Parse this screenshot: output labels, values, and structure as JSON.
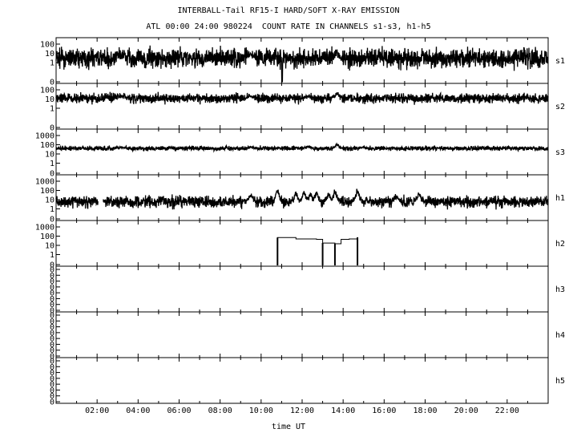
{
  "title": "INTERBALL-Tail RF15-I HARD/SOFT X-RAY EMISSION",
  "subtitle": "ATL 00:00 24:00 980224  COUNT RATE IN CHANNELS s1-s3, h1-h5",
  "chart_data": {
    "type": "line",
    "title": "INTERBALL-Tail RF15-I HARD/SOFT X-RAY EMISSION",
    "subtitle": "ATL 00:00 24:00 980224  COUNT RATE IN CHANNELS s1-s3, h1-h5",
    "xlabel": "time UT",
    "xlim": [
      0,
      24
    ],
    "x_ticks": [
      "02:00",
      "04:00",
      "06:00",
      "08:00",
      "10:00",
      "12:00",
      "14:00",
      "16:00",
      "18:00",
      "20:00",
      "22:00"
    ],
    "x_tick_hours": [
      2,
      4,
      6,
      8,
      10,
      12,
      14,
      16,
      18,
      20,
      22
    ],
    "grid": false,
    "panels": [
      {
        "name": "s1",
        "scale": "log",
        "y_ticks": [
          "100",
          "10",
          "1",
          "0"
        ],
        "baseline": 3,
        "noise": 0.5,
        "events": [
          [
            13.7,
            12
          ],
          [
            9.5,
            5
          ],
          [
            3.2,
            5
          ]
        ],
        "dropouts": [
          [
            1.9,
            1.9
          ],
          [
            11.0,
            11.05
          ]
        ],
        "gaps": []
      },
      {
        "name": "s2",
        "scale": "log",
        "y_ticks": [
          "100",
          "10",
          "1",
          "0"
        ],
        "baseline": 12,
        "noise": 0.25,
        "events": [
          [
            13.7,
            35
          ],
          [
            9.5,
            20
          ],
          [
            3.2,
            18
          ],
          [
            12.3,
            18
          ]
        ],
        "dropouts": [],
        "gaps": []
      },
      {
        "name": "s3",
        "scale": "log",
        "y_ticks": [
          "1000",
          "100",
          "10",
          "1",
          "0"
        ],
        "baseline": 40,
        "noise": 0.12,
        "events": [
          [
            13.7,
            100
          ],
          [
            9.5,
            55
          ],
          [
            3.2,
            55
          ],
          [
            12.3,
            60
          ],
          [
            15.0,
            55
          ]
        ],
        "dropouts": [],
        "gaps": []
      },
      {
        "name": "h1",
        "scale": "log",
        "y_ticks": [
          "1000",
          "100",
          "10",
          "1",
          "0"
        ],
        "baseline": 6,
        "noise": 0.3,
        "events": [
          [
            9.5,
            30
          ],
          [
            10.8,
            90
          ],
          [
            11.7,
            40
          ],
          [
            12.1,
            45
          ],
          [
            12.4,
            30
          ],
          [
            12.7,
            50
          ],
          [
            13.3,
            35
          ],
          [
            13.6,
            70
          ],
          [
            14.7,
            80
          ],
          [
            16.6,
            20
          ],
          [
            17.7,
            35
          ]
        ],
        "dropouts": [],
        "gaps": [
          [
            2.05,
            2.3
          ]
        ]
      },
      {
        "name": "h2",
        "scale": "log",
        "y_ticks": [
          "1000",
          "100",
          "10",
          "1",
          "0"
        ],
        "step": {
          "x": [
            10.8,
            11.7,
            12.7,
            13.0,
            13.6,
            13.9,
            14.3,
            14.7
          ],
          "y": [
            70,
            50,
            45,
            18,
            15,
            45,
            50,
            75
          ]
        }
      },
      {
        "name": "h3",
        "scale": "empty",
        "y_ticks": [
          "0",
          "0",
          "0",
          "0",
          "0",
          "0",
          "0",
          "0"
        ]
      },
      {
        "name": "h4",
        "scale": "empty",
        "y_ticks": [
          "0",
          "0",
          "0",
          "0",
          "0",
          "0",
          "0",
          "0"
        ]
      },
      {
        "name": "h5",
        "scale": "empty",
        "y_ticks": [
          "0",
          "0",
          "0",
          "0",
          "0",
          "0",
          "0",
          "0"
        ]
      }
    ]
  }
}
